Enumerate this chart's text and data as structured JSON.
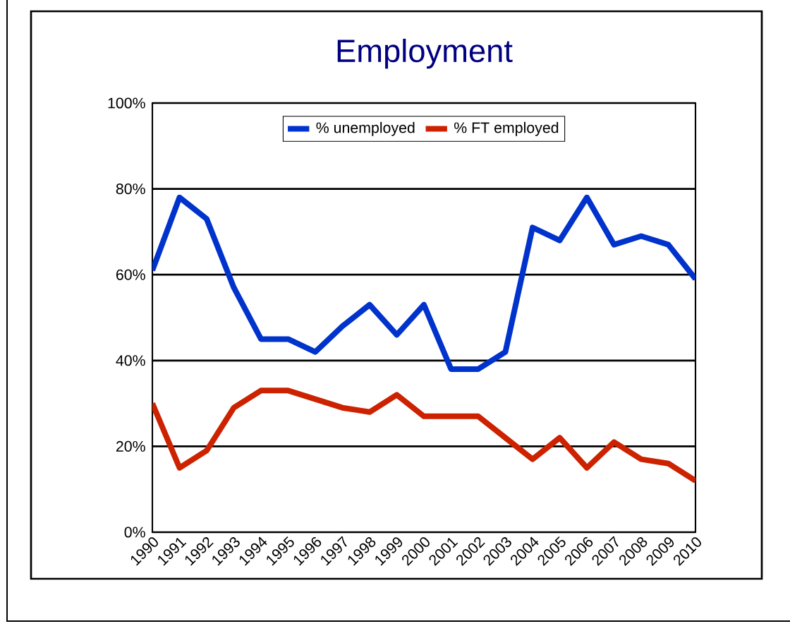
{
  "chart_data": {
    "type": "line",
    "title": "Employment",
    "categories": [
      "1990",
      "1991",
      "1992",
      "1993",
      "1994",
      "1995",
      "1996",
      "1997",
      "1998",
      "1999",
      "2000",
      "2001",
      "2002",
      "2003",
      "2004",
      "2005",
      "2006",
      "2007",
      "2008",
      "2009",
      "2010"
    ],
    "series": [
      {
        "name": "% unemployed",
        "color": "#0033cc",
        "values": [
          61,
          78,
          73,
          57,
          45,
          45,
          42,
          48,
          53,
          46,
          53,
          38,
          38,
          42,
          71,
          68,
          78,
          67,
          69,
          67,
          59
        ]
      },
      {
        "name": "% FT employed",
        "color": "#cc2200",
        "values": [
          30,
          15,
          19,
          29,
          33,
          33,
          31,
          29,
          28,
          32,
          27,
          27,
          27,
          22,
          17,
          22,
          15,
          21,
          17,
          16,
          12
        ]
      }
    ],
    "ylim": [
      0,
      100
    ],
    "yticks": [
      {
        "value": 0,
        "label": "0%"
      },
      {
        "value": 20,
        "label": "20%"
      },
      {
        "value": 40,
        "label": "40%"
      },
      {
        "value": 60,
        "label": "60%"
      },
      {
        "value": 80,
        "label": "80%"
      },
      {
        "value": 100,
        "label": "100%"
      }
    ],
    "grid": "y",
    "legend": "top",
    "marker": "none",
    "line_style": "solid"
  }
}
